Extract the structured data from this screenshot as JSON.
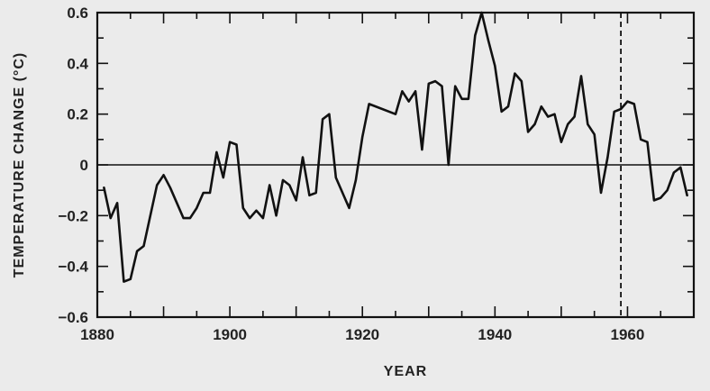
{
  "chart_data": {
    "type": "line",
    "title": "",
    "xlabel": "YEAR",
    "ylabel": "TEMPERATURE CHANGE (°C)",
    "xlim": [
      1880,
      1970
    ],
    "ylim": [
      -0.6,
      0.6
    ],
    "x_ticks": [
      1880,
      1900,
      1920,
      1940,
      1960
    ],
    "x_tick_labels": [
      "1880",
      "1900",
      "1920",
      "1940",
      "1960"
    ],
    "y_ticks": [
      0.6,
      0.4,
      0.2,
      0,
      -0.2,
      -0.4,
      -0.6
    ],
    "y_tick_labels": [
      "0.6",
      "0.4",
      "0.2",
      "0",
      "−0.2",
      "−0.4",
      "−0.6"
    ],
    "zero_line": 0,
    "reference_line_x": 1959,
    "grid": false,
    "series": [
      {
        "x": [
          1881,
          1882,
          1883,
          1884,
          1885,
          1886,
          1887,
          1889,
          1890,
          1891,
          1892,
          1893,
          1894,
          1895,
          1896,
          1897,
          1898,
          1899,
          1900,
          1901,
          1902,
          1903,
          1904,
          1905,
          1906,
          1907,
          1908,
          1909,
          1910,
          1911,
          1912,
          1913,
          1914,
          1915,
          1916,
          1918,
          1919,
          1920,
          1921,
          1925,
          1926,
          1927,
          1928,
          1929,
          1930,
          1931,
          1932,
          1933,
          1934,
          1935,
          1936,
          1937,
          1938,
          1939,
          1940,
          1941,
          1942,
          1943,
          1944,
          1945,
          1946,
          1947,
          1948,
          1949,
          1950,
          1951,
          1952,
          1953,
          1954,
          1955,
          1956,
          1957,
          1958,
          1959,
          1960,
          1961,
          1962,
          1963,
          1964,
          1965,
          1966,
          1967,
          1968,
          1969
        ],
        "y": [
          -0.09,
          -0.21,
          -0.15,
          -0.46,
          -0.45,
          -0.34,
          -0.32,
          -0.08,
          -0.04,
          -0.09,
          -0.15,
          -0.21,
          -0.21,
          -0.17,
          -0.11,
          -0.11,
          0.05,
          -0.05,
          0.09,
          0.08,
          -0.17,
          -0.21,
          -0.18,
          -0.21,
          -0.08,
          -0.2,
          -0.06,
          -0.08,
          -0.14,
          0.03,
          -0.12,
          -0.11,
          0.18,
          0.2,
          -0.05,
          -0.17,
          -0.06,
          0.11,
          0.24,
          0.2,
          0.29,
          0.25,
          0.29,
          0.06,
          0.32,
          0.33,
          0.31,
          0.0,
          0.31,
          0.26,
          0.26,
          0.51,
          0.6,
          0.49,
          0.39,
          0.21,
          0.23,
          0.36,
          0.33,
          0.13,
          0.16,
          0.23,
          0.19,
          0.2,
          0.09,
          0.16,
          0.19,
          0.35,
          0.16,
          0.12,
          -0.11,
          0.03,
          0.21,
          0.22,
          0.25,
          0.24,
          0.1,
          0.09,
          -0.14,
          -0.13,
          -0.1,
          -0.03,
          -0.01,
          -0.12
        ]
      }
    ]
  }
}
